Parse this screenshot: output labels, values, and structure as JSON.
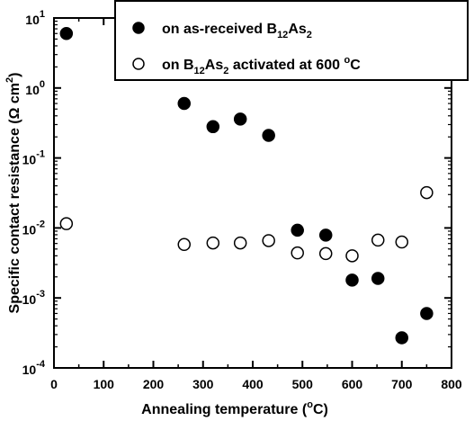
{
  "chart_data": {
    "type": "scatter",
    "xlabel_main": "Annealing temperature (",
    "xlabel_sup": "o",
    "xlabel_end": "C)",
    "ylabel_main": "Specific contact resistance (Ω cm",
    "ylabel_sup": "2",
    "ylabel_end": ")",
    "xlim": [
      0,
      800
    ],
    "ylim": [
      0.0001,
      10
    ],
    "yscale": "log",
    "x_ticks": [
      0,
      100,
      200,
      300,
      400,
      500,
      600,
      700,
      800
    ],
    "x_tick_labels": [
      "0",
      "100",
      "200",
      "300",
      "400",
      "500",
      "600",
      "700",
      "800"
    ],
    "y_ticks": [
      0.0001,
      0.001,
      0.01,
      0.1,
      1,
      10
    ],
    "y_tick_base": "10",
    "y_tick_exponents": [
      "-4",
      "-3",
      "-2",
      "-1",
      "0",
      "1"
    ],
    "grid": false,
    "legend_position": "top-right",
    "legend": [
      {
        "marker": "filled-circle",
        "text_a": "on as-received B",
        "sub1": "12",
        "text_b": "As",
        "sub2": "2"
      },
      {
        "marker": "open-circle",
        "text_a": "on B",
        "sub1": "12",
        "text_b": "As",
        "sub2": "2",
        "text_c": " activated at 600 ",
        "sup": "o",
        "text_d": "C"
      }
    ],
    "series": [
      {
        "marker": "filled-circle",
        "x": [
          25,
          262,
          320,
          375,
          432,
          490,
          547,
          600,
          652,
          700,
          750
        ],
        "y": [
          6,
          0.6,
          0.28,
          0.36,
          0.21,
          0.0093,
          0.0079,
          0.0018,
          0.0019,
          0.00027,
          0.0006
        ]
      },
      {
        "marker": "open-circle",
        "x": [
          25,
          262,
          320,
          375,
          432,
          490,
          547,
          600,
          652,
          700,
          750
        ],
        "y": [
          0.0115,
          0.0058,
          0.0061,
          0.0061,
          0.0066,
          0.0044,
          0.0043,
          0.004,
          0.0067,
          0.0063,
          0.032
        ]
      }
    ]
  }
}
